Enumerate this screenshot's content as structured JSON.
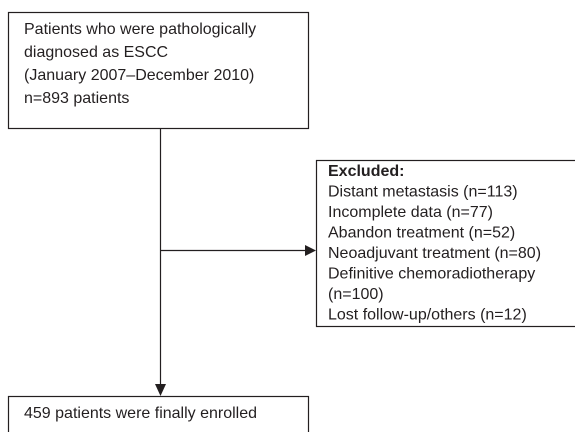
{
  "nodes": [
    {
      "lines": [
        "Patients who were pathologically",
        "diagnosed as ESCC",
        "(January 2007–December 2010)",
        "n=893 patients"
      ]
    },
    {
      "title": "Excluded:",
      "lines": [
        "Distant metastasis (n=113)",
        "Incomplete data (n=77)",
        "Abandon treatment (n=52)",
        "Neoadjuvant treatment (n=80)",
        "Definitive chemoradiotherapy",
        "(n=100)",
        "Lost follow-up/others (n=12)"
      ]
    },
    {
      "lines": [
        "459 patients were finally enrolled"
      ]
    }
  ]
}
